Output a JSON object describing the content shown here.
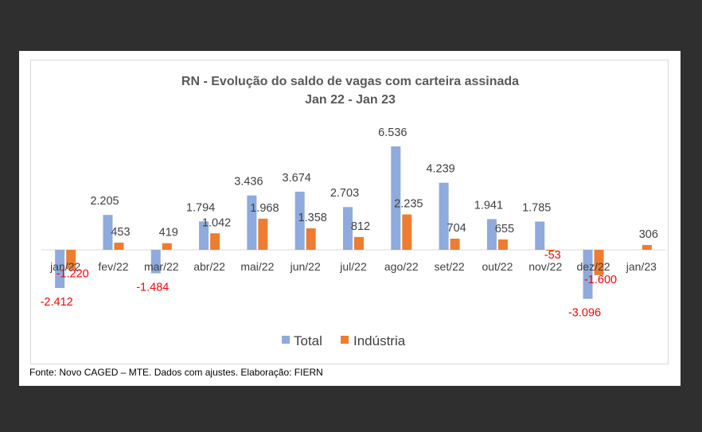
{
  "chart_data": {
    "type": "bar",
    "title": "RN - Evolução do saldo de vagas com carteira assinada",
    "subtitle": "Jan 22 - Jan 23",
    "categories": [
      "jan/22",
      "fev/22",
      "mar/22",
      "abr/22",
      "mai/22",
      "jun/22",
      "jul/22",
      "ago/22",
      "set/22",
      "out/22",
      "nov/22",
      "dez/22",
      "jan/23"
    ],
    "series": [
      {
        "name": "Total",
        "color": "#8faadc",
        "values": [
          -2412,
          2205,
          -1484,
          1794,
          3436,
          3674,
          2703,
          6536,
          4239,
          1941,
          1785,
          -3096,
          null
        ],
        "labels": [
          "-2.412",
          "2.205",
          "-1.484",
          "1.794",
          "3.436",
          "3.674",
          "2.703",
          "6.536",
          "4.239",
          "1.941",
          "1.785",
          "-3.096",
          ""
        ]
      },
      {
        "name": "Indústria",
        "color": "#ed7d31",
        "values": [
          -1220,
          453,
          419,
          1042,
          1968,
          1358,
          812,
          2235,
          704,
          655,
          -53,
          -1600,
          306
        ],
        "labels": [
          "-1.220",
          "453",
          "419",
          "1.042",
          "1.968",
          "1.358",
          "812",
          "2.235",
          "704",
          "655",
          "-53",
          "-1.600",
          "306"
        ]
      }
    ],
    "legend_position": "bottom",
    "negative_label_color": "#ff0000",
    "positive_label_color": "#404040",
    "grid": false
  },
  "source_note": "Fonte: Novo CAGED – MTE. Dados com ajustes. Elaboração: FIERN"
}
